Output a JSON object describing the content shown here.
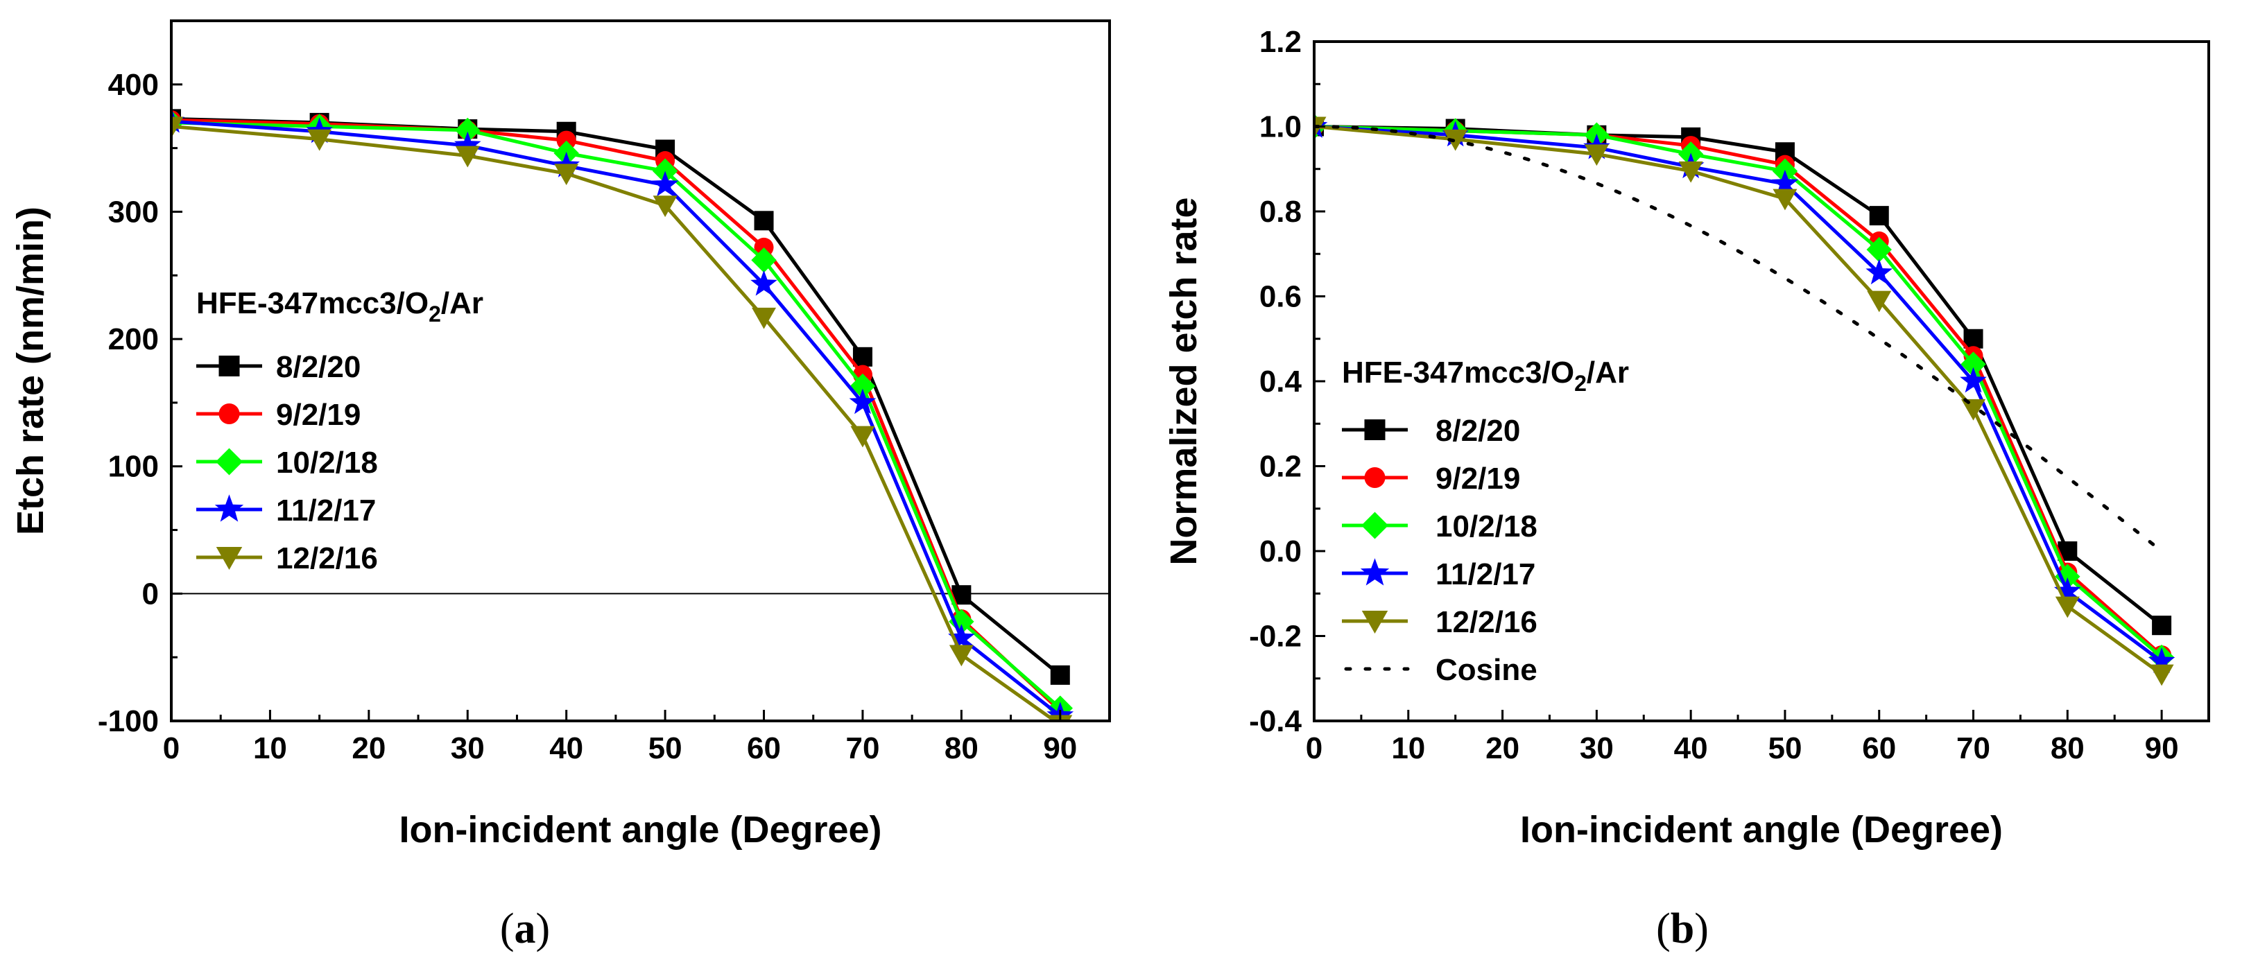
{
  "chart_data": [
    {
      "type": "line",
      "panel": "(a)",
      "panel_letter": "a",
      "xlabel": "Ion-incident angle (Degree)",
      "ylabel": "Etch rate (nm/min)",
      "xlim": [
        0,
        95
      ],
      "ylim": [
        -100,
        450
      ],
      "xticks": [
        0,
        10,
        20,
        30,
        40,
        50,
        60,
        70,
        80,
        90
      ],
      "yticks": [
        -100,
        0,
        100,
        200,
        300,
        400
      ],
      "zero_line": true,
      "legend_title": "HFE-347mcc3/O2/Ar",
      "legend_title_parts": {
        "prefix": "HFE-347mcc3/O",
        "sub": "2",
        "suffix": "/Ar"
      },
      "x": [
        0,
        15,
        30,
        40,
        50,
        60,
        70,
        80,
        90
      ],
      "series": [
        {
          "name": "8/2/20",
          "color": "#000000",
          "marker": "square",
          "values": [
            373,
            370,
            365,
            363,
            349,
            293,
            186,
            -1,
            -64
          ]
        },
        {
          "name": "9/2/19",
          "color": "#ff0000",
          "marker": "circle",
          "values": [
            372,
            369,
            364,
            356,
            340,
            272,
            172,
            -20,
            -92
          ]
        },
        {
          "name": "10/2/18",
          "color": "#00ff00",
          "marker": "diamond",
          "values": [
            370,
            367,
            364,
            346,
            332,
            262,
            163,
            -22,
            -90
          ]
        },
        {
          "name": "11/2/17",
          "color": "#0000ff",
          "marker": "star",
          "values": [
            371,
            363,
            352,
            336,
            321,
            243,
            150,
            -35,
            -96
          ]
        },
        {
          "name": "12/2/16",
          "color": "#808000",
          "marker": "triangle-down",
          "values": [
            367,
            357,
            344,
            330,
            305,
            217,
            124,
            -48,
            -103
          ]
        }
      ]
    },
    {
      "type": "line",
      "panel": "(b)",
      "panel_letter": "b",
      "xlabel": "Ion-incident angle (Degree)",
      "ylabel": "Normalized etch rate",
      "xlim": [
        0,
        95
      ],
      "ylim": [
        -0.4,
        1.2
      ],
      "xticks": [
        0,
        10,
        20,
        30,
        40,
        50,
        60,
        70,
        80,
        90
      ],
      "yticks": [
        -0.4,
        -0.2,
        0.0,
        0.2,
        0.4,
        0.6,
        0.8,
        1.0,
        1.2
      ],
      "ytick_labels": [
        "-0.4",
        "-0.2",
        "0.0",
        "0.2",
        "0.4",
        "0.6",
        "0.8",
        "1.0",
        "1.2"
      ],
      "legend_title": "HFE-347mcc3/O2/Ar",
      "legend_title_parts": {
        "prefix": "HFE-347mcc3/O",
        "sub": "2",
        "suffix": "/Ar"
      },
      "x": [
        0,
        15,
        30,
        40,
        50,
        60,
        70,
        80,
        90
      ],
      "series": [
        {
          "name": "8/2/20",
          "color": "#000000",
          "marker": "square",
          "values": [
            1.0,
            0.995,
            0.98,
            0.975,
            0.94,
            0.79,
            0.5,
            0.0,
            -0.175
          ]
        },
        {
          "name": "9/2/19",
          "color": "#ff0000",
          "marker": "circle",
          "values": [
            1.0,
            0.99,
            0.98,
            0.955,
            0.91,
            0.73,
            0.46,
            -0.05,
            -0.245
          ]
        },
        {
          "name": "10/2/18",
          "color": "#00ff00",
          "marker": "diamond",
          "values": [
            1.0,
            0.99,
            0.98,
            0.935,
            0.895,
            0.71,
            0.44,
            -0.06,
            -0.25
          ]
        },
        {
          "name": "11/2/17",
          "color": "#0000ff",
          "marker": "star",
          "values": [
            1.0,
            0.98,
            0.95,
            0.905,
            0.865,
            0.655,
            0.4,
            -0.095,
            -0.26
          ]
        },
        {
          "name": "12/2/16",
          "color": "#808000",
          "marker": "triangle-down",
          "values": [
            1.0,
            0.97,
            0.935,
            0.895,
            0.83,
            0.59,
            0.335,
            -0.13,
            -0.29
          ]
        },
        {
          "name": "Cosine",
          "color": "#000000",
          "marker": "none",
          "dashed": true,
          "function": "cos(angle)",
          "values": [
            1.0,
            0.966,
            0.866,
            0.766,
            0.643,
            0.5,
            0.342,
            0.174,
            0.0
          ]
        }
      ]
    }
  ]
}
